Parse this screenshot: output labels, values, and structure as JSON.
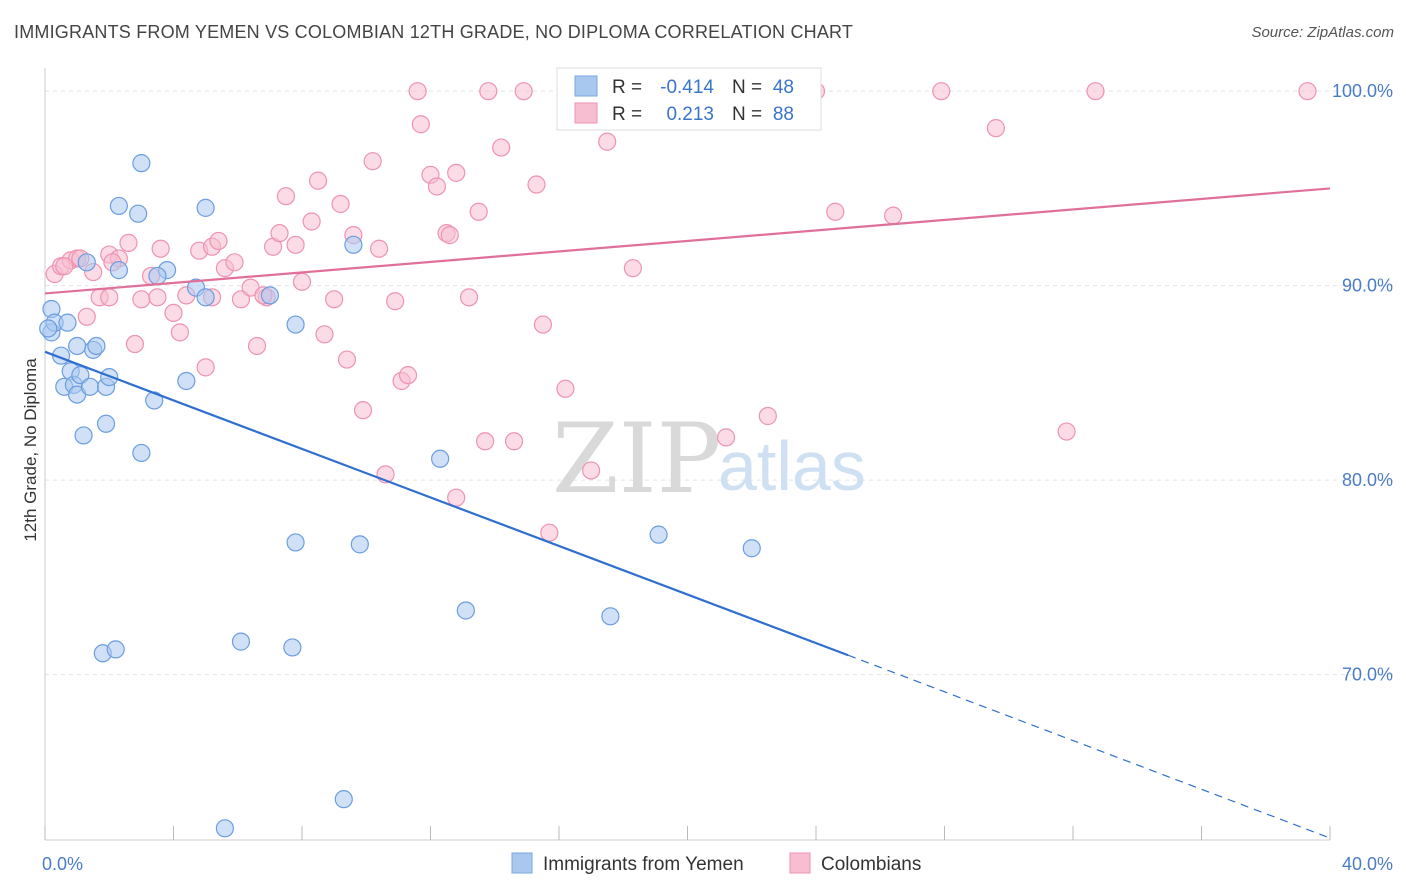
{
  "title": "IMMIGRANTS FROM YEMEN VS COLOMBIAN 12TH GRADE, NO DIPLOMA CORRELATION CHART",
  "source": "Source: ZipAtlas.com",
  "watermark": {
    "zip": "ZIP",
    "atlas": "atlas"
  },
  "legend_top": {
    "r_label": "R =",
    "n_label": "N =",
    "rows": [
      {
        "series": "Immigrants from Yemen",
        "r": "-0.414",
        "n": "48",
        "color": "#a9c8f0",
        "stroke": "#7aa7e0"
      },
      {
        "series": "Colombians",
        "r": "0.213",
        "n": "88",
        "color": "#f7bdd0",
        "stroke": "#ee93b1"
      }
    ]
  },
  "chart_data": {
    "type": "scatter",
    "ylabel": "12th Grade, No Diploma",
    "xlim": [
      0,
      40
    ],
    "ylim": [
      61.5,
      101.5
    ],
    "x_tick_labels": [
      {
        "v": 0,
        "t": "0.0%"
      },
      {
        "v": 40,
        "t": "40.0%"
      }
    ],
    "y_tick_labels": [
      {
        "v": 100,
        "t": "100.0%"
      },
      {
        "v": 90,
        "t": "90.0%"
      },
      {
        "v": 80,
        "t": "80.0%"
      },
      {
        "v": 70,
        "t": "70.0%"
      }
    ],
    "y_gridlines": [
      100,
      90,
      80,
      70
    ],
    "grid": true,
    "legend_position": "bottom",
    "series": [
      {
        "name": "Immigrants from Yemen",
        "color": "#a9c8f0",
        "stroke": "#6b9de0",
        "line_color": "#2f6fd0",
        "trend": {
          "x0": 0,
          "y0": 86.6,
          "x1": 25.0,
          "y1": 71.0,
          "dash_to_x": 40,
          "dash_to_y": 61.6
        },
        "points": [
          [
            0.2,
            88.8
          ],
          [
            0.2,
            87.6
          ],
          [
            0.3,
            88.1
          ],
          [
            0.5,
            86.4
          ],
          [
            0.7,
            88.1
          ],
          [
            0.6,
            84.8
          ],
          [
            0.8,
            85.6
          ],
          [
            0.9,
            84.9
          ],
          [
            1.0,
            84.4
          ],
          [
            1.1,
            85.4
          ],
          [
            1.0,
            86.9
          ],
          [
            1.2,
            82.3
          ],
          [
            1.4,
            84.8
          ],
          [
            1.5,
            86.7
          ],
          [
            1.6,
            86.9
          ],
          [
            1.9,
            82.9
          ],
          [
            1.9,
            84.8
          ],
          [
            2.0,
            85.3
          ],
          [
            2.3,
            94.1
          ],
          [
            2.3,
            90.8
          ],
          [
            2.9,
            93.7
          ],
          [
            3.0,
            96.3
          ],
          [
            3.0,
            81.4
          ],
          [
            3.4,
            84.1
          ],
          [
            3.8,
            90.8
          ],
          [
            4.4,
            85.1
          ],
          [
            4.7,
            89.9
          ],
          [
            5.0,
            89.4
          ],
          [
            5.0,
            94.0
          ],
          [
            7.0,
            89.5
          ],
          [
            7.8,
            88.0
          ],
          [
            9.6,
            92.1
          ],
          [
            12.3,
            81.1
          ],
          [
            1.8,
            71.1
          ],
          [
            2.2,
            71.3
          ],
          [
            6.1,
            71.7
          ],
          [
            7.7,
            71.4
          ],
          [
            7.8,
            76.8
          ],
          [
            9.8,
            76.7
          ],
          [
            13.1,
            73.3
          ],
          [
            17.6,
            73.0
          ],
          [
            19.1,
            77.2
          ],
          [
            22.0,
            76.5
          ],
          [
            5.6,
            62.1
          ],
          [
            9.3,
            63.6
          ],
          [
            0.1,
            87.8
          ],
          [
            1.3,
            91.2
          ],
          [
            3.5,
            90.5
          ]
        ]
      },
      {
        "name": "Colombians",
        "color": "#f7bdd0",
        "stroke": "#ee93b1",
        "line_color": "#e0709a",
        "trend": {
          "x0": 0,
          "y0": 89.6,
          "x1": 40,
          "y1": 95.0
        },
        "points": [
          [
            0.3,
            90.6
          ],
          [
            0.5,
            91.0
          ],
          [
            0.8,
            91.3
          ],
          [
            1.0,
            91.4
          ],
          [
            1.3,
            88.4
          ],
          [
            1.5,
            90.7
          ],
          [
            1.7,
            89.4
          ],
          [
            2.0,
            91.6
          ],
          [
            2.3,
            91.4
          ],
          [
            2.6,
            92.2
          ],
          [
            2.8,
            87.0
          ],
          [
            3.0,
            89.3
          ],
          [
            3.3,
            90.5
          ],
          [
            3.6,
            91.9
          ],
          [
            4.0,
            88.6
          ],
          [
            4.2,
            87.6
          ],
          [
            4.4,
            89.5
          ],
          [
            4.8,
            91.8
          ],
          [
            5.0,
            85.8
          ],
          [
            5.2,
            92.0
          ],
          [
            5.4,
            92.3
          ],
          [
            5.6,
            90.9
          ],
          [
            5.9,
            91.2
          ],
          [
            6.1,
            89.3
          ],
          [
            6.4,
            89.9
          ],
          [
            6.6,
            86.9
          ],
          [
            6.9,
            89.4
          ],
          [
            7.1,
            92.0
          ],
          [
            7.3,
            92.7
          ],
          [
            7.5,
            94.6
          ],
          [
            7.8,
            92.1
          ],
          [
            8.0,
            90.2
          ],
          [
            8.3,
            93.3
          ],
          [
            8.5,
            95.4
          ],
          [
            8.7,
            87.5
          ],
          [
            9.0,
            89.3
          ],
          [
            9.2,
            94.2
          ],
          [
            9.4,
            86.2
          ],
          [
            9.6,
            92.6
          ],
          [
            9.9,
            83.6
          ],
          [
            10.2,
            96.4
          ],
          [
            10.4,
            91.9
          ],
          [
            10.6,
            80.3
          ],
          [
            10.9,
            89.2
          ],
          [
            11.1,
            85.1
          ],
          [
            11.3,
            85.4
          ],
          [
            11.7,
            98.3
          ],
          [
            11.6,
            100.0
          ],
          [
            12.0,
            95.7
          ],
          [
            12.2,
            95.1
          ],
          [
            12.5,
            92.7
          ],
          [
            12.8,
            79.1
          ],
          [
            12.8,
            95.8
          ],
          [
            13.2,
            89.4
          ],
          [
            13.5,
            93.8
          ],
          [
            13.7,
            82.0
          ],
          [
            13.8,
            100.0
          ],
          [
            14.2,
            97.1
          ],
          [
            14.6,
            82.0
          ],
          [
            14.9,
            100.0
          ],
          [
            15.3,
            95.2
          ],
          [
            15.5,
            88.0
          ],
          [
            15.7,
            77.3
          ],
          [
            16.2,
            84.7
          ],
          [
            16.5,
            98.7
          ],
          [
            17.0,
            80.5
          ],
          [
            17.5,
            97.4
          ],
          [
            18.0,
            98.5
          ],
          [
            18.3,
            90.9
          ],
          [
            19.5,
            100.0
          ],
          [
            21.2,
            82.2
          ],
          [
            22.5,
            83.3
          ],
          [
            24.0,
            100.0
          ],
          [
            24.6,
            93.8
          ],
          [
            26.4,
            93.6
          ],
          [
            27.9,
            100.0
          ],
          [
            29.6,
            98.1
          ],
          [
            31.8,
            82.5
          ],
          [
            32.7,
            100.0
          ],
          [
            39.3,
            100.0
          ],
          [
            2.0,
            89.4
          ],
          [
            3.5,
            89.4
          ],
          [
            5.2,
            89.4
          ],
          [
            6.8,
            89.5
          ],
          [
            0.6,
            91.0
          ],
          [
            1.1,
            91.4
          ],
          [
            2.1,
            91.2
          ],
          [
            12.6,
            92.6
          ]
        ]
      }
    ]
  }
}
